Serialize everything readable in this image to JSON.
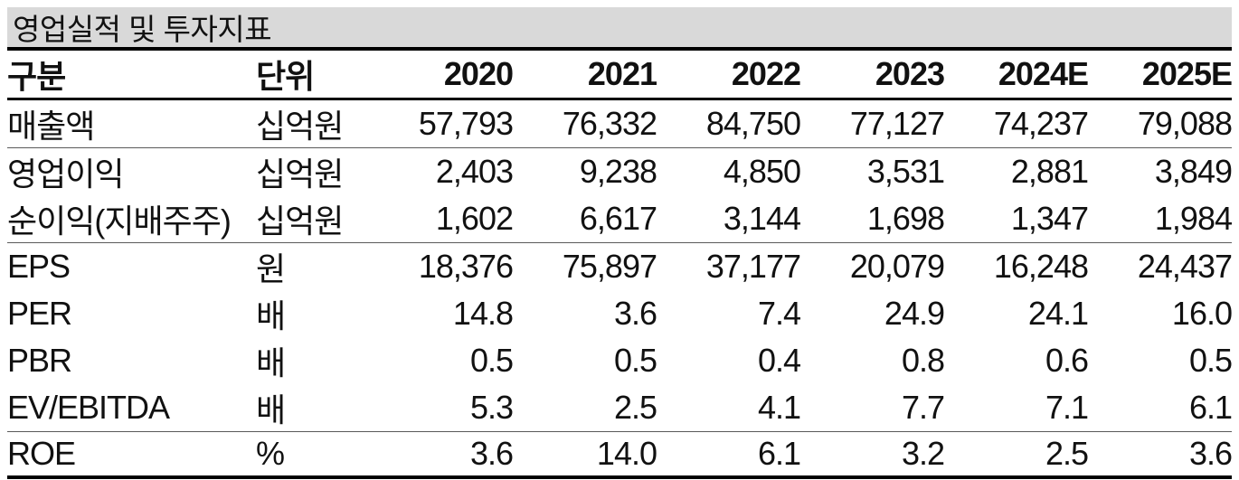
{
  "title": "영업실적 및 투자지표",
  "colors": {
    "title_bg": "#d9d9d9",
    "heavy_rule": "#000000",
    "light_rule": "#5a5a5a",
    "text": "#111111"
  },
  "table": {
    "col_headers": [
      "구분",
      "단위",
      "2020",
      "2021",
      "2022",
      "2023",
      "2024E",
      "2025E"
    ],
    "rows": [
      {
        "label": "매출액",
        "unit": "십억원",
        "values": [
          "57,793",
          "76,332",
          "84,750",
          "77,127",
          "74,237",
          "79,088"
        ]
      },
      {
        "label": "영업이익",
        "unit": "십억원",
        "values": [
          "2,403",
          "9,238",
          "4,850",
          "3,531",
          "2,881",
          "3,849"
        ]
      },
      {
        "label": "순이익(지배주주)",
        "unit": "십억원",
        "values": [
          "1,602",
          "6,617",
          "3,144",
          "1,698",
          "1,347",
          "1,984"
        ]
      },
      {
        "label": "EPS",
        "unit": "원",
        "values": [
          "18,376",
          "75,897",
          "37,177",
          "20,079",
          "16,248",
          "24,437"
        ]
      },
      {
        "label": "PER",
        "unit": "배",
        "values": [
          "14.8",
          "3.6",
          "7.4",
          "24.9",
          "24.1",
          "16.0"
        ]
      },
      {
        "label": "PBR",
        "unit": "배",
        "values": [
          "0.5",
          "0.5",
          "0.4",
          "0.8",
          "0.6",
          "0.5"
        ]
      },
      {
        "label": "EV/EBITDA",
        "unit": "배",
        "values": [
          "5.3",
          "2.5",
          "4.1",
          "7.7",
          "7.1",
          "6.1"
        ]
      },
      {
        "label": "ROE",
        "unit": "%",
        "values": [
          "3.6",
          "14.0",
          "6.1",
          "3.2",
          "2.5",
          "3.6"
        ]
      }
    ]
  },
  "chart_data": {
    "type": "table",
    "title": "영업실적 및 투자지표",
    "categories": [
      "2020",
      "2021",
      "2022",
      "2023",
      "2024E",
      "2025E"
    ],
    "series": [
      {
        "name": "매출액 (십억원)",
        "values": [
          57793,
          76332,
          84750,
          77127,
          74237,
          79088
        ]
      },
      {
        "name": "영업이익 (십억원)",
        "values": [
          2403,
          9238,
          4850,
          3531,
          2881,
          3849
        ]
      },
      {
        "name": "순이익(지배주주) (십억원)",
        "values": [
          1602,
          6617,
          3144,
          1698,
          1347,
          1984
        ]
      },
      {
        "name": "EPS (원)",
        "values": [
          18376,
          75897,
          37177,
          20079,
          16248,
          24437
        ]
      },
      {
        "name": "PER (배)",
        "values": [
          14.8,
          3.6,
          7.4,
          24.9,
          24.1,
          16.0
        ]
      },
      {
        "name": "PBR (배)",
        "values": [
          0.5,
          0.5,
          0.4,
          0.8,
          0.6,
          0.5
        ]
      },
      {
        "name": "EV/EBITDA (배)",
        "values": [
          5.3,
          2.5,
          4.1,
          7.7,
          7.1,
          6.1
        ]
      },
      {
        "name": "ROE (%)",
        "values": [
          3.6,
          14.0,
          6.1,
          3.2,
          2.5,
          3.6
        ]
      }
    ]
  }
}
